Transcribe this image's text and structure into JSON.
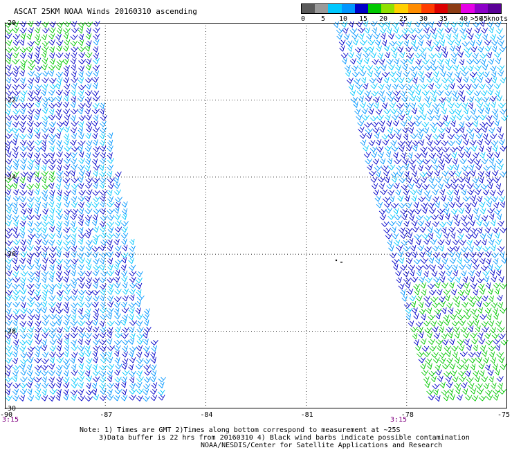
{
  "title": "ASCAT 25KM NOAA Winds 20160310 ascending",
  "legend": {
    "colors": [
      "#5a5a5a",
      "#9a9a9a",
      "#00c8ff",
      "#0096ff",
      "#0000c8",
      "#00c800",
      "#90e000",
      "#ffd000",
      "#ff8c00",
      "#ff3c00",
      "#dc0000",
      "#8c3c14",
      "#e600e6",
      "#8c00c8",
      "#5a0096"
    ],
    "labels": [
      "0",
      "5",
      "10",
      "15",
      "20",
      "25",
      "30",
      "35",
      "40",
      "45",
      ">50 knots"
    ]
  },
  "map": {
    "lon_range": [
      -90,
      -75
    ],
    "lat_range": [
      -30,
      -20
    ],
    "lat_labels": [
      "-20",
      "-22",
      "-24",
      "-26",
      "-28",
      "-30"
    ],
    "lon_labels": [
      "-90",
      "-87",
      "-84",
      "-81",
      "-78",
      "-75"
    ],
    "time_labels": [
      "3:15",
      "3:15"
    ],
    "barb_colors": {
      "dark_blue": "#0000c8",
      "blue": "#0096ff",
      "cyan": "#00c8ff",
      "green": "#00c800"
    }
  },
  "notes": {
    "line1": "Note: 1) Times are GMT 2)Times along bottom correspond to measurement at ~25S",
    "line2": "3)Data buffer is 22 hrs from 20160310 4) Black wind barbs indicate possible contamination",
    "line3": "NOAA/NESDIS/Center for Satellite Applications and Research"
  }
}
